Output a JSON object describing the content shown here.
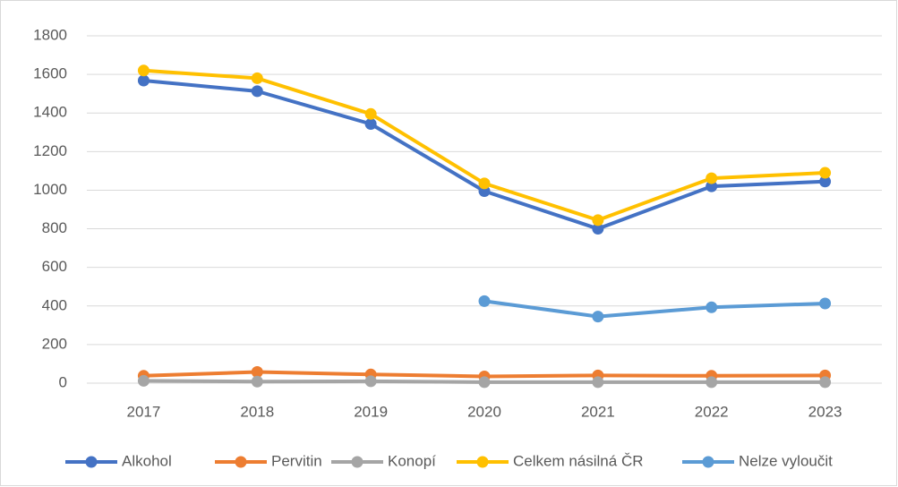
{
  "chart_data": {
    "type": "line",
    "categories": [
      "2017",
      "2018",
      "2019",
      "2020",
      "2021",
      "2022",
      "2023"
    ],
    "series": [
      {
        "name": "Alkohol",
        "color": "#4472c4",
        "values": [
          1568,
          1513,
          1343,
          995,
          800,
          1020,
          1045
        ]
      },
      {
        "name": "Pervitin",
        "color": "#ed7d31",
        "values": [
          38,
          58,
          45,
          35,
          40,
          38,
          40
        ]
      },
      {
        "name": "Konopí",
        "color": "#a5a5a5",
        "values": [
          12,
          8,
          10,
          5,
          5,
          5,
          5
        ]
      },
      {
        "name": "Celkem násilná ČR",
        "color": "#ffc000",
        "values": [
          1620,
          1580,
          1395,
          1035,
          845,
          1062,
          1090
        ]
      },
      {
        "name": "Nelze vyloučit",
        "color": "#5b9bd5",
        "values": [
          null,
          null,
          null,
          425,
          345,
          393,
          413
        ]
      }
    ],
    "ylim": [
      0,
      1800
    ],
    "yticks": [
      0,
      200,
      400,
      600,
      800,
      1000,
      1200,
      1400,
      1600,
      1800
    ],
    "grid": true,
    "legend": "bottom"
  }
}
